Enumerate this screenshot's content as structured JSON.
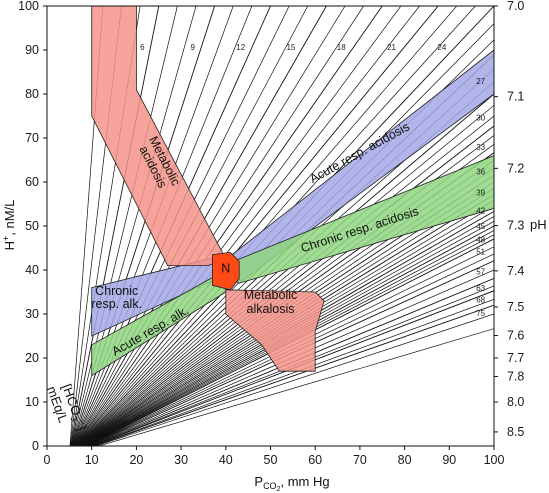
{
  "chart_data": {
    "type": "line",
    "x_axis": {
      "label_main": "P",
      "label_sub": "CO",
      "label_sub2": "2",
      "label_rest": ", mm Hg",
      "range": [
        0,
        100
      ],
      "ticks": [
        "0",
        "10",
        "20",
        "30",
        "40",
        "50",
        "60",
        "70",
        "80",
        "90",
        "100"
      ]
    },
    "y_axis_left": {
      "label_main": "H",
      "label_sup": "+",
      "label_rest": ", nM/L",
      "range": [
        0,
        100
      ],
      "ticks": [
        "0",
        "10",
        "20",
        "30",
        "40",
        "50",
        "60",
        "70",
        "80",
        "90",
        "100"
      ]
    },
    "y_axis_right": {
      "label": "pH",
      "ticks": [
        {
          "label": "7.0",
          "h": 100
        },
        {
          "label": "7.1",
          "h": 79.4
        },
        {
          "label": "7.2",
          "h": 63.1
        },
        {
          "label": "7.3",
          "h": 50.1
        },
        {
          "label": "7.4",
          "h": 39.8
        },
        {
          "label": "7.5",
          "h": 31.6
        },
        {
          "label": "7.6",
          "h": 25.1
        },
        {
          "label": "7.7",
          "h": 20.0
        },
        {
          "label": "7.8",
          "h": 15.8
        },
        {
          "label": "8.0",
          "h": 10.0
        },
        {
          "label": "8.5",
          "h": 3.2
        }
      ]
    },
    "bicarbonate_label": {
      "line1": "[HCO",
      "sub": "3",
      "close": "⁻]",
      "line2": "mEq/L"
    },
    "isopleths": [
      {
        "label": "6",
        "hco3": 6
      },
      {
        "label": "9",
        "hco3": 9
      },
      {
        "label": "12",
        "hco3": 12
      },
      {
        "label": "15",
        "hco3": 15
      },
      {
        "label": "18",
        "hco3": 18
      },
      {
        "label": "21",
        "hco3": 21
      },
      {
        "label": "24",
        "hco3": 24
      },
      {
        "label": "27",
        "hco3": 27
      },
      {
        "label": "30",
        "hco3": 30
      },
      {
        "label": "33",
        "hco3": 33
      },
      {
        "label": "36",
        "hco3": 36
      },
      {
        "label": "39",
        "hco3": 39
      },
      {
        "label": "42",
        "hco3": 42
      },
      {
        "label": "45",
        "hco3": 45
      },
      {
        "label": "48",
        "hco3": 48
      },
      {
        "label": "51",
        "hco3": 51
      },
      {
        "label": "57",
        "hco3": 57
      },
      {
        "label": "63",
        "hco3": 63
      },
      {
        "label": "68",
        "hco3": 68
      },
      {
        "label": "75",
        "hco3": 75
      }
    ],
    "unlabeled_isopleths": [
      3,
      4,
      5,
      7,
      8,
      10,
      11,
      13,
      14,
      16,
      17,
      19,
      20,
      22,
      23,
      25,
      26,
      28,
      29,
      31,
      32,
      34,
      35,
      37,
      38,
      40,
      41,
      43,
      44,
      46,
      47,
      49,
      50,
      53,
      55,
      60,
      66,
      72,
      80,
      90
    ],
    "regions": [
      {
        "name": "metabolic-acidosis",
        "label_lines": [
          "Metabolic",
          "acidosis"
        ],
        "color": "#f5948a",
        "polygon": [
          [
            10,
            100
          ],
          [
            20,
            100
          ],
          [
            20,
            81
          ],
          [
            40,
            42.5
          ],
          [
            36,
            41
          ],
          [
            27,
            41
          ],
          [
            10,
            75
          ]
        ]
      },
      {
        "name": "metabolic-alkalosis",
        "label_lines": [
          "Metabolic",
          "alkalosis"
        ],
        "color": "#f5948a",
        "polygon": [
          [
            40,
            35.5
          ],
          [
            60,
            35
          ],
          [
            62,
            33
          ],
          [
            60,
            26
          ],
          [
            60,
            17
          ],
          [
            52,
            17
          ],
          [
            48,
            23
          ],
          [
            40,
            30
          ]
        ]
      },
      {
        "name": "acute-resp-acidosis",
        "label": "Acute resp. acidosis",
        "color": "#a3a8e6",
        "polygon": [
          [
            37,
            40
          ],
          [
            100,
            90
          ],
          [
            100,
            80
          ],
          [
            43,
            37
          ]
        ]
      },
      {
        "name": "chronic-resp-acidosis",
        "label": "Chronic resp. acidosis",
        "color": "#8fd680",
        "polygon": [
          [
            37,
            40
          ],
          [
            100,
            66
          ],
          [
            100,
            54
          ],
          [
            43,
            37
          ]
        ]
      },
      {
        "name": "chronic-resp-alk",
        "label_lines": [
          "Chronic",
          "resp. alk."
        ],
        "color": "#a3a8e6",
        "polygon": [
          [
            10,
            36
          ],
          [
            38,
            43
          ],
          [
            38,
            38
          ],
          [
            10,
            25
          ]
        ]
      },
      {
        "name": "acute-resp-alk",
        "label": "Acute resp. alk.",
        "color": "#8fd680",
        "polygon": [
          [
            10,
            23
          ],
          [
            40,
            40
          ],
          [
            40,
            35
          ],
          [
            10,
            16
          ]
        ]
      },
      {
        "name": "normal",
        "label": "N",
        "color": "#ff4a15",
        "polygon": [
          [
            37,
            43.5
          ],
          [
            41,
            44
          ],
          [
            43,
            42
          ],
          [
            43,
            38
          ],
          [
            41,
            35.5
          ],
          [
            37,
            36.5
          ],
          [
            37,
            40
          ]
        ]
      }
    ],
    "grid": false
  }
}
